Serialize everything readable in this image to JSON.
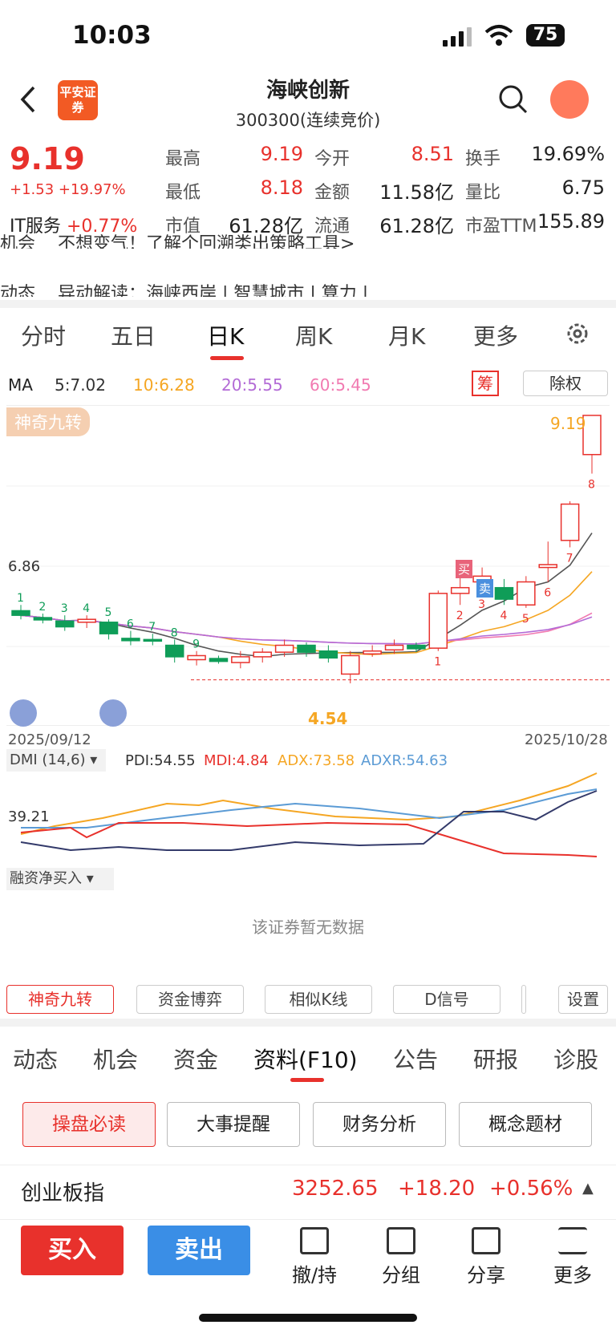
{
  "status_bar": {
    "time": "10:03",
    "battery": "75"
  },
  "header": {
    "logo_text": "平安证券",
    "title": "海峡创新",
    "subtitle": "300300(连续竞价)"
  },
  "quote": {
    "price": "9.19",
    "change": "+1.53 +19.97%",
    "industry_name": "IT服务",
    "industry_change": "+0.77%",
    "fields": [
      {
        "label": "最高",
        "value": "9.19",
        "color": "#e8312c"
      },
      {
        "label": "今开",
        "value": "8.51",
        "color": "#e8312c"
      },
      {
        "label": "换手",
        "value": "19.69%",
        "color": "#222222"
      },
      {
        "label": "最低",
        "value": "8.18",
        "color": "#e8312c"
      },
      {
        "label": "金额",
        "value": "11.58亿",
        "color": "#222222"
      },
      {
        "label": "量比",
        "value": "6.75",
        "color": "#222222"
      },
      {
        "label": "市值",
        "value": "61.28亿",
        "color": "#222222"
      },
      {
        "label": "流通",
        "value": "61.28亿",
        "color": "#222222"
      },
      {
        "label": "市盈TTM",
        "value": "155.89",
        "color": "#222222"
      }
    ]
  },
  "news": [
    {
      "tag": "机会",
      "text": "不想变气！了解个回溯类出策略工具>"
    },
    {
      "tag": "动态",
      "text": "异动解读：海峡西岸 | 智慧城市 | 算力 |"
    }
  ],
  "period_tabs": [
    "分时",
    "五日",
    "日K",
    "周K",
    "月K",
    "更多"
  ],
  "ma": {
    "label": "MA",
    "ma5": "5:7.02",
    "ma10": "10:6.28",
    "ma20": "20:5.55",
    "ma60": "60:5.45",
    "chip": "筹",
    "exright": "除权"
  },
  "chart": {
    "tag": "神奇九转",
    "max_label": "9.19",
    "level": "6.86",
    "min_label": "4.54",
    "date_start": "2025/09/12",
    "date_end": "2025/10/28",
    "buy_mark": "买",
    "sell_mark": "卖"
  },
  "chart_data": {
    "type": "candlestick",
    "dates": [
      "2025/09/12",
      "2025/10/28"
    ],
    "candles": [
      {
        "o": 5.8,
        "c": 5.72,
        "h": 5.9,
        "l": 5.65
      },
      {
        "o": 5.68,
        "c": 5.64,
        "h": 5.75,
        "l": 5.58
      },
      {
        "o": 5.62,
        "c": 5.52,
        "h": 5.72,
        "l": 5.45
      },
      {
        "o": 5.6,
        "c": 5.65,
        "h": 5.72,
        "l": 5.5
      },
      {
        "o": 5.6,
        "c": 5.4,
        "h": 5.65,
        "l": 5.3
      },
      {
        "o": 5.32,
        "c": 5.28,
        "h": 5.45,
        "l": 5.2
      },
      {
        "o": 5.3,
        "c": 5.28,
        "h": 5.4,
        "l": 5.2
      },
      {
        "o": 5.2,
        "c": 5.0,
        "h": 5.3,
        "l": 4.9
      },
      {
        "o": 4.95,
        "c": 5.02,
        "h": 5.1,
        "l": 4.85
      },
      {
        "o": 4.97,
        "c": 4.92,
        "h": 5.02,
        "l": 4.88
      },
      {
        "o": 4.9,
        "c": 5.0,
        "h": 5.1,
        "l": 4.8
      },
      {
        "o": 5.0,
        "c": 5.08,
        "h": 5.15,
        "l": 4.9
      },
      {
        "o": 5.08,
        "c": 5.2,
        "h": 5.3,
        "l": 5.0
      },
      {
        "o": 5.2,
        "c": 5.08,
        "h": 5.25,
        "l": 5.0
      },
      {
        "o": 5.1,
        "c": 4.98,
        "h": 5.2,
        "l": 4.9
      },
      {
        "o": 4.7,
        "c": 5.02,
        "h": 5.1,
        "l": 4.54
      },
      {
        "o": 5.05,
        "c": 5.1,
        "h": 5.2,
        "l": 5.0
      },
      {
        "o": 5.12,
        "c": 5.2,
        "h": 5.3,
        "l": 5.05
      },
      {
        "o": 5.2,
        "c": 5.14,
        "h": 5.25,
        "l": 5.08
      },
      {
        "o": 5.15,
        "c": 6.1,
        "h": 6.15,
        "l": 5.1
      },
      {
        "o": 6.1,
        "c": 6.2,
        "h": 6.55,
        "l": 5.9
      },
      {
        "o": 6.3,
        "c": 6.4,
        "h": 6.55,
        "l": 6.1
      },
      {
        "o": 6.2,
        "c": 6.0,
        "h": 6.35,
        "l": 5.9
      },
      {
        "o": 5.9,
        "c": 6.3,
        "h": 6.4,
        "l": 5.85
      },
      {
        "o": 6.55,
        "c": 6.6,
        "h": 7.0,
        "l": 6.3
      },
      {
        "o": 7.02,
        "c": 7.65,
        "h": 7.7,
        "l": 6.9
      },
      {
        "o": 8.51,
        "c": 9.19,
        "h": 9.19,
        "l": 8.18
      }
    ],
    "nine_turn_counts": [
      "1",
      "2",
      "3",
      "4",
      "5",
      "6",
      "7",
      "8",
      "9",
      "1",
      "2",
      "3",
      "4",
      "5",
      "6",
      "7",
      "8"
    ],
    "ma_values": {
      "ma5": 7.02,
      "ma10": 6.28,
      "ma20": 5.55,
      "ma60": 5.45
    }
  },
  "dmi": {
    "label": "DMI (14,6)",
    "pdi": "PDI:54.55",
    "mdi": "MDI:4.84",
    "adx": "ADX:73.58",
    "adxr": "ADXR:54.63",
    "level": "39.21"
  },
  "margin": {
    "label": "融资净买入",
    "empty": "该证券暂无数据"
  },
  "tool_buttons": [
    "神奇九转",
    "资金博弈",
    "相似K线",
    "D信号",
    "设置"
  ],
  "bottom_tabs": [
    "动态",
    "机会",
    "资金",
    "资料(F10)",
    "公告",
    "研报",
    "诊股"
  ],
  "f10_buttons": [
    "操盘必读",
    "大事提醒",
    "财务分析",
    "概念题材"
  ],
  "index": {
    "name": "创业板指",
    "value": "3252.65",
    "change": "+18.20",
    "pct": "+0.56%"
  },
  "actions": {
    "buy": "买入",
    "sell": "卖出",
    "tools": [
      "撤/持",
      "分组",
      "分享",
      "更多"
    ]
  }
}
